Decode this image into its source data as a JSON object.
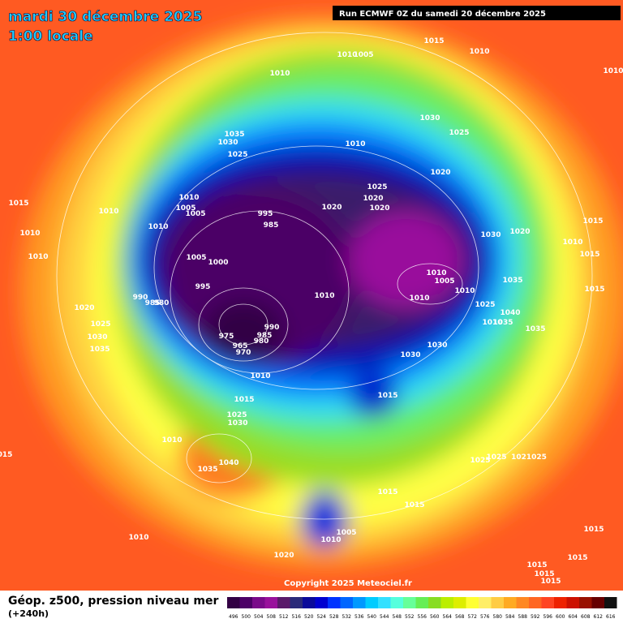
{
  "header": {
    "title": "mardi 30 décembre 2025",
    "time": "1:00 locale",
    "run": "Run ECMWF 0Z du samedi 20 décembre 2025"
  },
  "map": {
    "copyright": "Copyright 2025 Meteociel.fr",
    "isobar_labels": [
      "1015",
      "1010",
      "1005",
      "1010",
      "1010",
      "1010",
      "1035",
      "1030",
      "1025",
      "1030",
      "1025",
      "1010",
      "1020",
      "1025",
      "1020",
      "1020",
      "1020",
      "995",
      "985",
      "1010",
      "1005",
      "1005",
      "1010",
      "1015",
      "1010",
      "1010",
      "1010",
      "1005",
      "1000",
      "995",
      "1030",
      "1020",
      "1015",
      "1010",
      "1015",
      "1015",
      "1010",
      "1005",
      "1010",
      "1010",
      "1035",
      "1025",
      "1040",
      "1010",
      "1035",
      "1035",
      "990",
      "985",
      "980",
      "1020",
      "1025",
      "1030",
      "1035",
      "975",
      "990",
      "985",
      "980",
      "965",
      "970",
      "1010",
      "1010",
      "1030",
      "1030",
      "1015",
      "1015",
      "1025",
      "1030",
      "1010",
      "1035",
      "1040",
      "015",
      "1025",
      "1025",
      "1021025",
      "1015",
      "1015",
      "1005",
      "1010",
      "1010",
      "1020",
      "1015",
      "1015",
      "1015",
      "1015",
      "1015"
    ]
  },
  "footer": {
    "title": "Géop. z500, pression niveau mer",
    "lead": "(+240h)"
  },
  "colorbar": {
    "labels": [
      "496",
      "500",
      "504",
      "508",
      "512",
      "516",
      "520",
      "524",
      "528",
      "532",
      "536",
      "540",
      "544",
      "548",
      "552",
      "556",
      "560",
      "564",
      "568",
      "572",
      "576",
      "580",
      "584",
      "588",
      "592",
      "596",
      "600",
      "604",
      "608",
      "612",
      "616"
    ],
    "colors": [
      "#330044",
      "#4c0066",
      "#7a0a8a",
      "#99119c",
      "#5a1a6a",
      "#2a2a7a",
      "#0a0a9a",
      "#0000d0",
      "#0033ff",
      "#0066ff",
      "#0099ff",
      "#00ccff",
      "#33e0ff",
      "#55ffdd",
      "#66ff99",
      "#66ee55",
      "#88dd22",
      "#bbee00",
      "#ddee00",
      "#ffff33",
      "#ffee66",
      "#ffcc44",
      "#ffaa22",
      "#ff8822",
      "#ff6622",
      "#ff4422",
      "#ee2200",
      "#cc1100",
      "#991100",
      "#660000",
      "#111111"
    ]
  }
}
